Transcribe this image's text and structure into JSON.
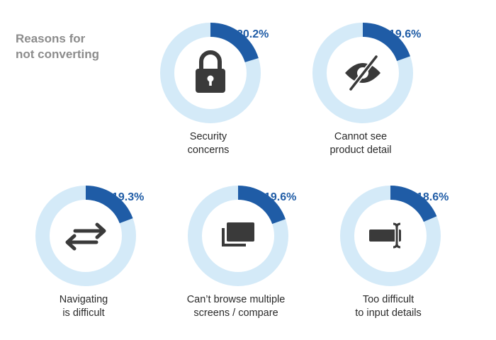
{
  "title": {
    "line1": "Reasons for",
    "line2": "not converting"
  },
  "chart_data": {
    "type": "pie",
    "title": "Reasons for not converting",
    "unit": "%",
    "items": [
      {
        "label": [
          "Security",
          "concerns"
        ],
        "value": 20.2,
        "value_label": "20.2%",
        "icon": "lock-icon"
      },
      {
        "label": [
          "Cannot see",
          "product detail"
        ],
        "value": 19.6,
        "value_label": "19.6%",
        "icon": "eye-slash-icon"
      },
      {
        "label": [
          "Navigating",
          "is difficult"
        ],
        "value": 19.3,
        "value_label": "19.3%",
        "icon": "arrows-exchange-icon"
      },
      {
        "label": [
          "Can’t browse multiple",
          "screens / compare"
        ],
        "value": 19.6,
        "value_label": "19.6%",
        "icon": "multiple-screens-icon"
      },
      {
        "label": [
          "Too difficult",
          "to input details"
        ],
        "value": 18.6,
        "value_label": "18.6%",
        "icon": "text-input-icon"
      }
    ]
  },
  "colors": {
    "ring_bg": "#d4eaf8",
    "ring_fg": "#1f5ca6",
    "icon": "#3a3a3a",
    "title": "#8c8c8c"
  }
}
